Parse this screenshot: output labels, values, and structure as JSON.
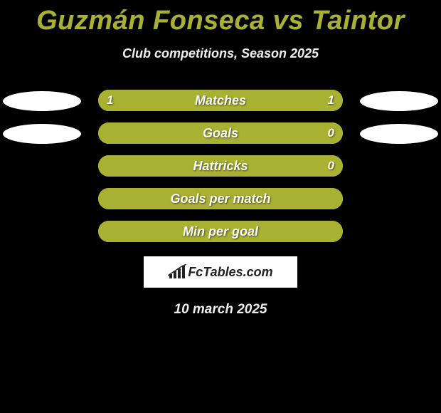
{
  "title": "Guzmán Fonseca vs Taintor",
  "subtitle": "Club competitions, Season 2025",
  "date": "10 march 2025",
  "logo_text": "FcTables.com",
  "colors": {
    "background": "#000000",
    "title": "#a9b132",
    "subtitle": "#eeeeee",
    "bar_fill": "#a9b132",
    "bar_track": "#a9b132",
    "ellipse": "#ffffff",
    "logo_bg": "#ffffff",
    "text": "#ffffff"
  },
  "typography": {
    "title_fontsize": 38,
    "subtitle_fontsize": 18,
    "label_fontsize": 18,
    "value_fontsize": 17,
    "date_fontsize": 19,
    "style": "italic",
    "weight": 700
  },
  "bar_style": {
    "height": 30,
    "border_radius": 15,
    "row_gap": 14
  },
  "rows": [
    {
      "label": "Matches",
      "left_value": "1",
      "right_value": "1",
      "left_pct": 50,
      "right_pct": 50,
      "show_left_ellipse": true,
      "show_right_ellipse": true,
      "show_values": true
    },
    {
      "label": "Goals",
      "left_value": "",
      "right_value": "0",
      "left_pct": 100,
      "right_pct": 0,
      "show_left_ellipse": true,
      "show_right_ellipse": true,
      "show_values": true
    },
    {
      "label": "Hattricks",
      "left_value": "",
      "right_value": "0",
      "left_pct": 100,
      "right_pct": 0,
      "show_left_ellipse": false,
      "show_right_ellipse": false,
      "show_values": true
    },
    {
      "label": "Goals per match",
      "left_value": "",
      "right_value": "",
      "left_pct": 100,
      "right_pct": 0,
      "show_left_ellipse": false,
      "show_right_ellipse": false,
      "show_values": false
    },
    {
      "label": "Min per goal",
      "left_value": "",
      "right_value": "",
      "left_pct": 100,
      "right_pct": 0,
      "show_left_ellipse": false,
      "show_right_ellipse": false,
      "show_values": false
    }
  ]
}
